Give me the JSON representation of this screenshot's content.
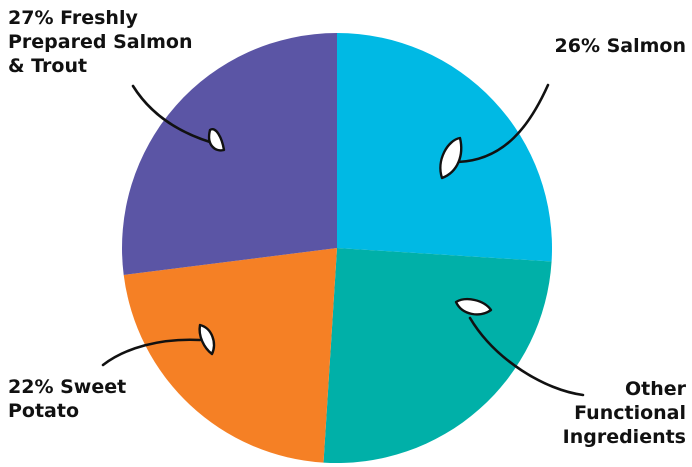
{
  "chart_data": {
    "type": "pie",
    "slices": [
      {
        "label_lines": [
          "26% Salmon"
        ],
        "value": 26,
        "color": "#00B9E4"
      },
      {
        "label_lines": [
          "Other",
          "Functional",
          "Ingredients"
        ],
        "value": 25,
        "color": "#00B0A8"
      },
      {
        "label_lines": [
          "22% Sweet",
          "Potato"
        ],
        "value": 22,
        "color": "#F58025"
      },
      {
        "label_lines": [
          "27% Freshly",
          "Prepared Salmon",
          "& Trout"
        ],
        "value": 27,
        "color": "#5B55A5"
      }
    ],
    "legend": "none",
    "labels": "outside with hand-drawn arrows"
  }
}
